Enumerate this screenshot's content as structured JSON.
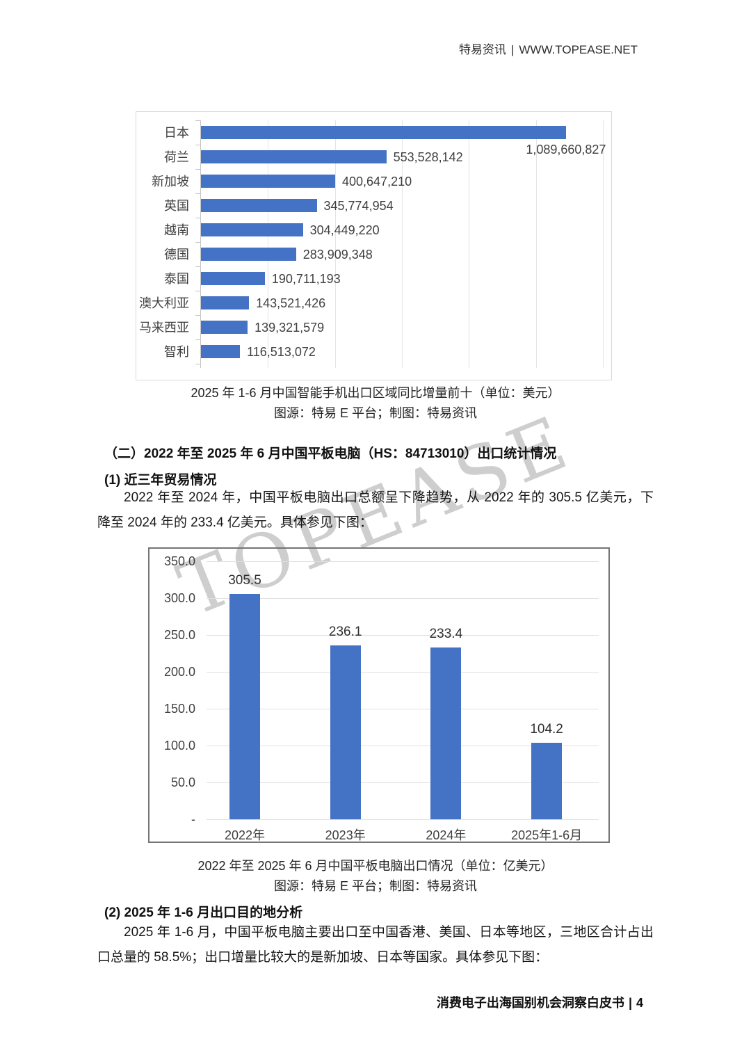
{
  "header": {
    "brand": "特易资讯",
    "separator": "|",
    "url": "WWW.TOPEASE.NET"
  },
  "watermark": "TOPEASE",
  "colors": {
    "bar": "#4472C4",
    "gridline": "#e2e2e2",
    "chart1_border": "#d9d9d9",
    "chart2_border": "#757575",
    "watermark": "#c6c6c6",
    "text": "#1a1a1a"
  },
  "chart_data": [
    {
      "type": "bar",
      "orientation": "horizontal",
      "title": "2025 年 1-6 月中国智能手机出口区域同比增量前十（单位：美元）",
      "source": "图源：特易 E 平台；制图：特易资讯",
      "categories": [
        "日本",
        "荷兰",
        "新加坡",
        "英国",
        "越南",
        "德国",
        "泰国",
        "澳大利亚",
        "马来西亚",
        "智利"
      ],
      "values": [
        1089660827,
        553528142,
        400647210,
        345774954,
        304449220,
        283909348,
        190711193,
        143521426,
        139321579,
        116513072
      ],
      "value_labels": [
        "1,089,660,827",
        "553,528,142",
        "400,647,210",
        "345,774,954",
        "304,449,220",
        "283,909,348",
        "190,711,193",
        "143,521,426",
        "139,321,579",
        "116,513,072"
      ],
      "xlim": [
        0,
        1200000000
      ],
      "x_gridline_step": 200000000,
      "grid": true,
      "legend": false
    },
    {
      "type": "bar",
      "orientation": "vertical",
      "title": "2022 年至 2025 年 6 月中国平板电脑出口情况（单位：亿美元）",
      "source": "图源：特易 E 平台；制图：特易资讯",
      "categories": [
        "2022年",
        "2023年",
        "2024年",
        "2025年1-6月"
      ],
      "values": [
        305.5,
        236.1,
        233.4,
        104.2
      ],
      "value_labels": [
        "305.5",
        "236.1",
        "233.4",
        "104.2"
      ],
      "ylim": [
        0,
        350
      ],
      "ytick_labels": [
        "350.0",
        "300.0",
        "250.0",
        "200.0",
        "150.0",
        "100.0",
        "50.0",
        "-"
      ],
      "grid": true,
      "legend": false
    }
  ],
  "sections": {
    "heading2": "（二）2022 年至 2025 年 6 月中国平板电脑（HS：84713010）出口统计情况",
    "sub1_title": "(1) 近三年贸易情况",
    "para1": "2022 年至 2024 年，中国平板电脑出口总额呈下降趋势，从 2022 年的 305.5 亿美元，下降至 2024 年的 233.4 亿美元。具体参见下图：",
    "sub2_title": "(2) 2025 年 1-6 月出口目的地分析",
    "para2": "2025 年 1-6 月，中国平板电脑主要出口至中国香港、美国、日本等地区，三地区合计占出口总量的 58.5%；出口增量比较大的是新加坡、日本等国家。具体参见下图："
  },
  "footer": {
    "title": "消费电子出海国别机会洞察白皮书",
    "separator": "|",
    "page": "4"
  }
}
